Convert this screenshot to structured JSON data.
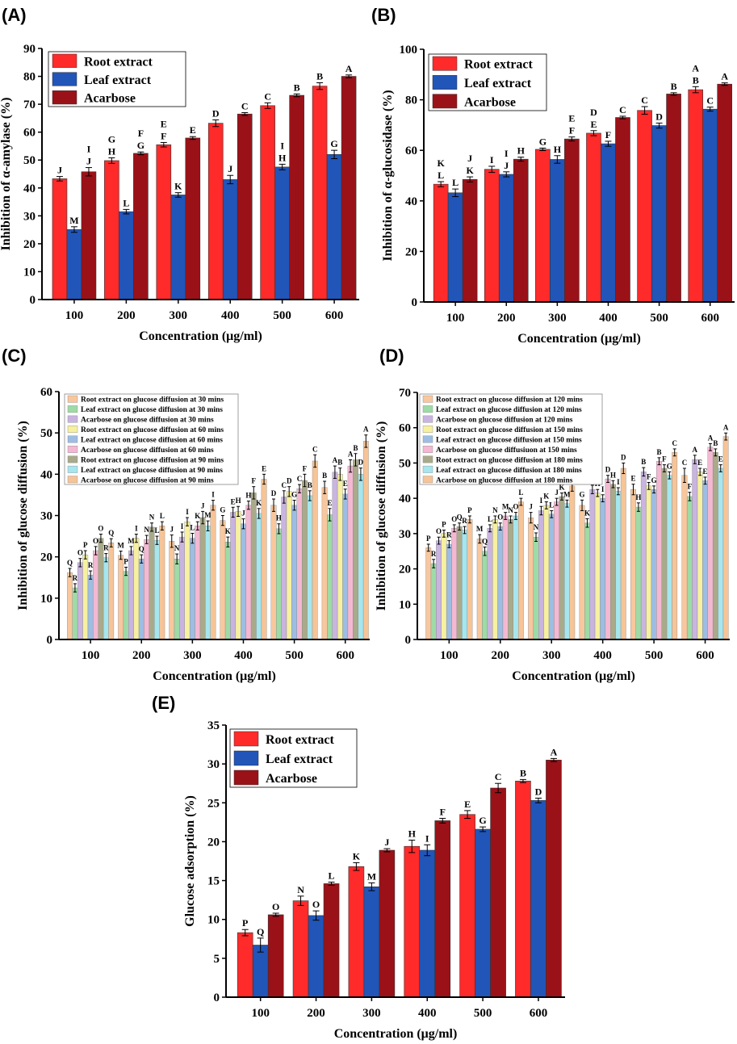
{
  "panels": [
    "(A)",
    "(B)",
    "(C)",
    "(D)",
    "(E)"
  ],
  "colors": {
    "root": "#ff2a2a",
    "leaf": "#2155b8",
    "acarbose": "#9b1118",
    "c30r": "#f9c79d",
    "c30l": "#9edba6",
    "c30a": "#c9b4e0",
    "c60r": "#f6f0a0",
    "c60l": "#9dbde3",
    "c60a": "#f4b8d2",
    "c90r": "#a9aa8a",
    "c90l": "#a6e6ee",
    "c90a": "#f6c497"
  },
  "chart_data": [
    {
      "id": "A",
      "type": "bar",
      "categories": [
        "100",
        "200",
        "300",
        "400",
        "500",
        "600"
      ],
      "xlabel": "Concentration (μg/ml)",
      "ylabel": "Inhibition of α-amylase (%)",
      "ylim": [
        0,
        90
      ],
      "yticks": [
        "0",
        "10",
        "20",
        "30",
        "40",
        "50",
        "60",
        "70",
        "80",
        "90"
      ],
      "legend": "top-left",
      "series": [
        {
          "name": "Root extract",
          "color_key": "root",
          "values": [
            43.3,
            49.8,
            55.5,
            63.2,
            69.5,
            76.5
          ],
          "errors": [
            0.8,
            1.0,
            0.8,
            1.2,
            1.0,
            1.2
          ],
          "labels": [
            "J",
            "G\nH",
            "E\nF",
            "D",
            "C",
            "B"
          ]
        },
        {
          "name": "Leaf extract",
          "color_key": "leaf",
          "values": [
            25.1,
            31.5,
            37.5,
            43.0,
            47.5,
            52.0
          ],
          "errors": [
            1.0,
            0.8,
            0.8,
            1.5,
            1.0,
            1.5
          ],
          "labels": [
            "M",
            "L",
            "K",
            "J",
            "I\nH",
            "G"
          ]
        },
        {
          "name": "Acarbose",
          "color_key": "acarbose",
          "values": [
            45.8,
            52.4,
            57.9,
            66.5,
            73.2,
            80.0
          ],
          "errors": [
            1.5,
            0.5,
            0.5,
            0.5,
            0.5,
            0.5
          ],
          "labels": [
            "I\nJ",
            "F\nG",
            "E",
            "C",
            "B",
            "A"
          ]
        }
      ]
    },
    {
      "id": "B",
      "type": "bar",
      "categories": [
        "100",
        "200",
        "300",
        "400",
        "500",
        "600"
      ],
      "xlabel": "Concentration (μg/ml)",
      "ylabel": "Inhibition of α-glucosidase (%)",
      "ylim": [
        0,
        100
      ],
      "yticks": [
        "0",
        "20",
        "40",
        "60",
        "80",
        "100"
      ],
      "legend": "top-left",
      "series": [
        {
          "name": "Root extract",
          "color_key": "root",
          "values": [
            46.6,
            52.5,
            60.4,
            66.8,
            75.8,
            84.0
          ],
          "errors": [
            1.0,
            1.2,
            0.5,
            1.0,
            1.5,
            1.2
          ],
          "labels": [
            "K\nL",
            "I",
            "G",
            "D\nE",
            "C",
            "A\nB"
          ]
        },
        {
          "name": "Leaf extract",
          "color_key": "leaf",
          "values": [
            43.2,
            50.5,
            56.4,
            62.6,
            69.8,
            76.3
          ],
          "errors": [
            1.5,
            1.0,
            1.5,
            1.0,
            1.0,
            0.8
          ],
          "labels": [
            "L",
            "I\nJ",
            "H",
            "F",
            "D",
            "C"
          ]
        },
        {
          "name": "Acarbose",
          "color_key": "acarbose",
          "values": [
            48.5,
            56.5,
            64.5,
            73.0,
            82.3,
            86.2
          ],
          "errors": [
            1.0,
            0.8,
            0.8,
            0.5,
            0.5,
            0.5
          ],
          "labels": [
            "J\nK",
            "H",
            "E\nF",
            "C",
            "B",
            "A"
          ]
        }
      ]
    },
    {
      "id": "C",
      "type": "bar",
      "categories": [
        "100",
        "200",
        "300",
        "400",
        "500",
        "600"
      ],
      "xlabel": "Concentration (μg/ml)",
      "ylabel": "Inhibition of glucose diffusion (%)",
      "ylim": [
        0,
        60
      ],
      "yticks": [
        "0",
        "10",
        "20",
        "30",
        "40",
        "50",
        "60"
      ],
      "legend": "top-left",
      "series": [
        {
          "name": "Root extract on glucose diffusion at 30 mins",
          "color_key": "c30r",
          "values": [
            16.2,
            20.4,
            23.8,
            28.8,
            32.5,
            36.8
          ],
          "errors": [
            1.0,
            1.0,
            1.5,
            1.2,
            1.5,
            1.5
          ],
          "labels": [
            "Q",
            "M",
            "J",
            "G",
            "D",
            "B"
          ]
        },
        {
          "name": "Leaf extract on glucose diffusion at 30 mins",
          "color_key": "c30l",
          "values": [
            12.5,
            16.5,
            19.5,
            23.6,
            26.8,
            30.2
          ],
          "errors": [
            1.0,
            1.0,
            1.2,
            1.2,
            1.2,
            1.5
          ],
          "labels": [
            "R",
            "P",
            "N",
            "K",
            "H",
            "E"
          ]
        },
        {
          "name": "Acarbose on glucose diffusion at 30 mins",
          "color_key": "c30a",
          "values": [
            18.6,
            21.5,
            24.8,
            30.8,
            34.5,
            40.5
          ],
          "errors": [
            1.0,
            1.0,
            1.2,
            1.2,
            1.5,
            1.5
          ],
          "labels": [
            "O",
            "M",
            "I",
            "E",
            "C",
            "A"
          ]
        },
        {
          "name": "Root extract on glucose diffusion at 60 mins",
          "color_key": "c60r",
          "values": [
            20.5,
            24.5,
            28.5,
            31.0,
            35.8,
            40.0
          ],
          "errors": [
            1.0,
            1.0,
            1.0,
            1.2,
            1.2,
            1.5
          ],
          "labels": [
            "P",
            "I",
            "I",
            "H",
            "D",
            "B"
          ]
        },
        {
          "name": "Leaf extract on glucose diffusion at 60 mins",
          "color_key": "c60l",
          "values": [
            15.6,
            19.5,
            24.5,
            28.0,
            32.5,
            35.2
          ],
          "errors": [
            1.0,
            1.0,
            1.2,
            1.2,
            1.2,
            1.2
          ],
          "labels": [
            "R",
            "Q",
            "L",
            "J",
            "G",
            "E"
          ]
        },
        {
          "name": "Acarbose on glucose diffusion at 60 mins",
          "color_key": "c60a",
          "values": [
            21.5,
            24.2,
            27.5,
            32.5,
            36.5,
            42.0
          ],
          "errors": [
            1.0,
            1.0,
            1.0,
            1.0,
            1.0,
            1.5
          ],
          "labels": [
            "O",
            "N",
            "K",
            "H",
            "C",
            "A"
          ]
        },
        {
          "name": "Root extract on glucose diffusion at 90 mins",
          "color_key": "c90r",
          "values": [
            24.5,
            27.2,
            29.5,
            35.5,
            38.5,
            43.5
          ],
          "errors": [
            1.0,
            1.0,
            1.5,
            1.5,
            1.5,
            1.5
          ],
          "labels": [
            "O",
            "N",
            "J",
            "F",
            "F",
            "B"
          ]
        },
        {
          "name": "Leaf extract on glucose diffusion at 90 mins",
          "color_key": "c90l",
          "values": [
            19.8,
            24.0,
            27.5,
            30.5,
            34.8,
            40.0
          ],
          "errors": [
            1.0,
            1.0,
            1.2,
            1.2,
            1.2,
            1.5
          ],
          "labels": [
            "R",
            "L",
            "M",
            "K",
            "B",
            "D"
          ]
        },
        {
          "name": "Acarbose on glucose diffusion at 90 mins",
          "color_key": "c90a",
          "values": [
            23.4,
            27.5,
            32.5,
            38.8,
            43.2,
            48.0
          ],
          "errors": [
            1.0,
            1.0,
            1.2,
            1.2,
            1.5,
            1.5
          ],
          "labels": [
            "Q",
            "L",
            "I",
            "E",
            "C",
            "A"
          ]
        }
      ]
    },
    {
      "id": "D",
      "type": "bar",
      "categories": [
        "100",
        "200",
        "300",
        "400",
        "500",
        "600"
      ],
      "xlabel": "Concentration (μg/ml)",
      "ylabel": "Inhibition of glucose diffusion (%)",
      "ylim": [
        0,
        70
      ],
      "yticks": [
        "0",
        "10",
        "20",
        "30",
        "40",
        "50",
        "60",
        "70"
      ],
      "legend": "top-left",
      "series": [
        {
          "name": "Root extract on glucose diffusion at 120 mins",
          "color_key": "c30r",
          "values": [
            26.0,
            28.5,
            34.5,
            38.0,
            42.5,
            46.5
          ],
          "errors": [
            1.0,
            1.2,
            1.5,
            1.5,
            1.5,
            2.0
          ],
          "labels": [
            "P",
            "M",
            "J",
            "G",
            "E",
            "C"
          ]
        },
        {
          "name": "Leaf extract on glucose diffusion at 120 mins",
          "color_key": "c30l",
          "values": [
            21.5,
            25.0,
            29.0,
            33.0,
            37.5,
            40.5
          ],
          "errors": [
            1.2,
            1.2,
            1.2,
            1.2,
            1.2,
            1.2
          ],
          "labels": [
            "R",
            "Q",
            "N",
            "K",
            "H",
            "F"
          ]
        },
        {
          "name": "Acarbose on glucose diffusion at 120 mins",
          "color_key": "c30a",
          "values": [
            28.0,
            31.5,
            36.5,
            42.5,
            47.5,
            51.0
          ],
          "errors": [
            1.0,
            1.0,
            1.2,
            1.2,
            1.2,
            1.2
          ],
          "labels": [
            "O",
            "L",
            "I",
            "D",
            "B",
            "A"
          ]
        },
        {
          "name": "Root extract on glucose diffusion at 150 mins",
          "color_key": "c60r",
          "values": [
            30.0,
            34.0,
            38.0,
            41.5,
            43.5,
            47.5
          ],
          "errors": [
            1.0,
            1.0,
            1.0,
            1.0,
            1.0,
            1.0
          ],
          "labels": [
            "P",
            "N",
            "K",
            "H",
            "F",
            "E"
          ]
        },
        {
          "name": "Leaf extract on glucose diffusion at 150 mins",
          "color_key": "c60l",
          "values": [
            27.0,
            32.0,
            35.5,
            40.0,
            42.5,
            45.0
          ],
          "errors": [
            1.0,
            1.0,
            1.0,
            1.0,
            1.0,
            1.0
          ],
          "labels": [
            "R",
            "O",
            "L",
            "I",
            "G",
            "E"
          ]
        },
        {
          "name": "Acarbose on glucose diffusiuon at 150 mins",
          "color_key": "c60a",
          "values": [
            31.5,
            35.0,
            39.0,
            45.5,
            50.5,
            54.5
          ],
          "errors": [
            1.0,
            1.0,
            1.0,
            1.0,
            1.0,
            1.0
          ],
          "labels": [
            "O",
            "M",
            "J",
            "D",
            "B",
            "A"
          ]
        },
        {
          "name": "Root extract on glucose diffusion at 180 mins",
          "color_key": "c90r",
          "values": [
            32.0,
            34.0,
            40.5,
            44.0,
            48.5,
            53.0
          ],
          "errors": [
            1.0,
            1.0,
            1.0,
            1.0,
            1.0,
            1.0
          ],
          "labels": [
            "Q",
            "N",
            "K",
            "H",
            "F",
            "B"
          ]
        },
        {
          "name": "Leaf extract on glucose diffusion at 180 mins",
          "color_key": "c90l",
          "values": [
            31.0,
            35.0,
            38.5,
            42.0,
            46.5,
            48.5
          ],
          "errors": [
            1.0,
            1.0,
            1.0,
            1.0,
            1.0,
            1.0
          ],
          "labels": [
            "R",
            "O",
            "M",
            "I",
            "G",
            "E"
          ]
        },
        {
          "name": "Acarbose on glucose diffusion at 180 mins",
          "color_key": "c90a",
          "values": [
            34.0,
            39.0,
            43.5,
            48.5,
            53.0,
            57.5
          ],
          "errors": [
            1.0,
            1.0,
            1.5,
            1.5,
            1.0,
            1.0
          ],
          "labels": [
            "P",
            "L",
            "I",
            "D",
            "C",
            "A"
          ]
        }
      ]
    },
    {
      "id": "E",
      "type": "bar",
      "categories": [
        "100",
        "200",
        "300",
        "400",
        "500",
        "600"
      ],
      "xlabel": "Concentration (μg/ml)",
      "ylabel": "Glucose adsorption (%)",
      "ylim": [
        0,
        35
      ],
      "yticks": [
        "0",
        "5",
        "10",
        "15",
        "20",
        "25",
        "30",
        "35"
      ],
      "legend": "top-left",
      "series": [
        {
          "name": "Root extract",
          "color_key": "root",
          "values": [
            8.3,
            12.4,
            16.8,
            19.4,
            23.5,
            27.8
          ],
          "errors": [
            0.4,
            0.6,
            0.5,
            0.8,
            0.5,
            0.2
          ],
          "labels": [
            "P",
            "N",
            "K",
            "H",
            "E",
            "B"
          ]
        },
        {
          "name": "Leaf extract",
          "color_key": "leaf",
          "values": [
            6.7,
            10.5,
            14.2,
            18.9,
            21.6,
            25.3
          ],
          "errors": [
            0.9,
            0.6,
            0.5,
            0.7,
            0.3,
            0.3
          ],
          "labels": [
            "Q",
            "O",
            "M",
            "I",
            "G",
            "D"
          ]
        },
        {
          "name": "Acarbose",
          "color_key": "acarbose",
          "values": [
            10.6,
            14.6,
            18.9,
            22.7,
            26.9,
            30.5
          ],
          "errors": [
            0.2,
            0.2,
            0.2,
            0.3,
            0.6,
            0.2
          ],
          "labels": [
            "O",
            "L",
            "J",
            "F",
            "C",
            "A"
          ]
        }
      ]
    }
  ]
}
